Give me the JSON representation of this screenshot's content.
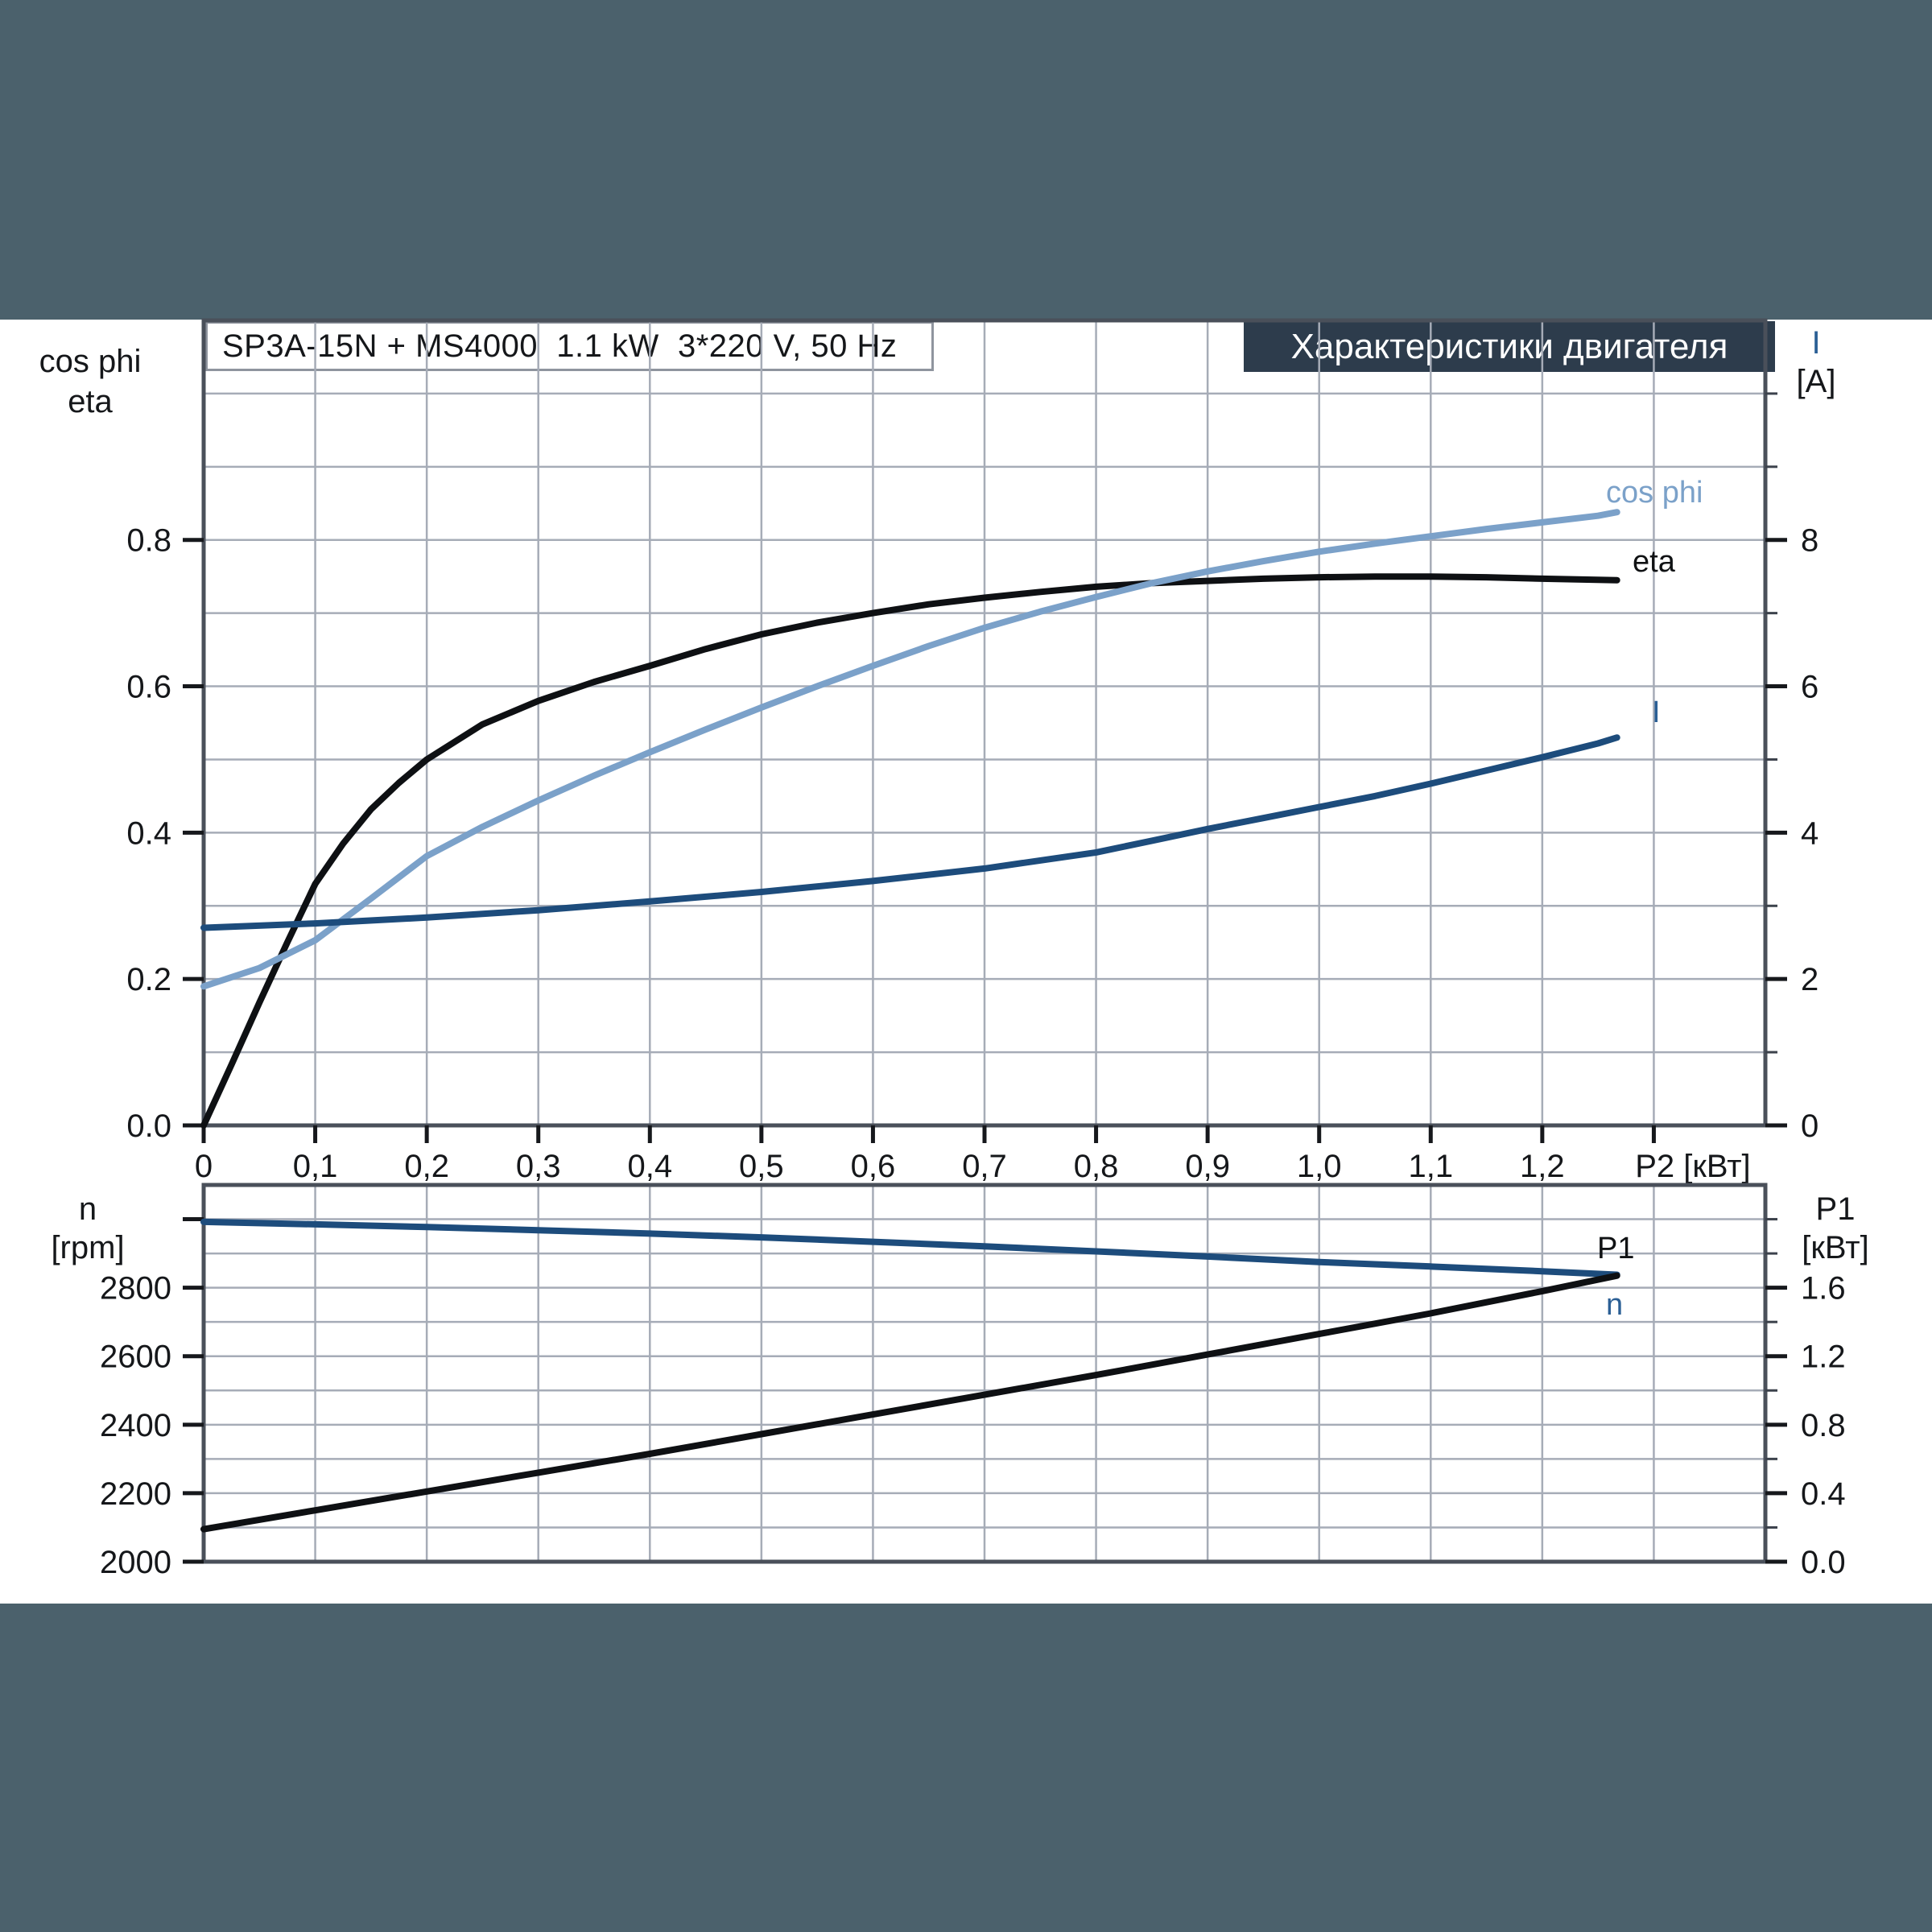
{
  "panel_header": "Характеристики двигателя",
  "colors": {
    "page_background": "#4b616c",
    "header_background": "#2d3c4c",
    "header_text": "#ffffff",
    "cos_phi_curve": "#7ba1c9",
    "eta_curve": "#0e1013",
    "current_curve": "#1d4c7c",
    "speed_curve": "#1d4c7c",
    "p1_curve": "#0e1013",
    "gridline": "#a6acb7"
  },
  "chart_data": [
    {
      "type": "line",
      "title": "SP3A-15N + MS4000  1.1 kW  3*220 V, 50 Hz",
      "panel_title": "Характеристики двигателя",
      "xlabel": "P2 [кВт]",
      "xlabel_at": 1.335,
      "ylabel_left": [
        "cos phi",
        "eta"
      ],
      "ylabel_right": [
        "I",
        "[A]"
      ],
      "xlim": [
        0,
        1.4
      ],
      "ylim_left": [
        0,
        1.1
      ],
      "ylim_right": [
        0,
        11
      ],
      "grid": true,
      "x_gridstep": 0.1,
      "y_gridstep_left": 0.1,
      "x_tickvals": [
        0,
        0.1,
        0.2,
        0.3,
        0.4,
        0.5,
        0.6,
        0.7,
        0.8,
        0.9,
        1.0,
        1.1,
        1.2,
        1.3
      ],
      "x_ticklabels": [
        "0",
        "0,1",
        "0,2",
        "0,3",
        "0,4",
        "0,5",
        "0,6",
        "0,7",
        "0,8",
        "0,9",
        "1,0",
        "1,1",
        "1,2"
      ],
      "yleft_tickvals": [
        0.8,
        0.6,
        0.4,
        0.2,
        0
      ],
      "yleft_ticklabels": [
        "0.8",
        "0.6",
        "0.4",
        "0.2",
        "0.0"
      ],
      "yright_tickvals": [
        8,
        6,
        4,
        2,
        0
      ],
      "yright_ticklabels": [
        "8",
        "6",
        "4",
        "2",
        "0"
      ],
      "yright_minorvals": [
        10,
        9,
        7,
        5,
        3,
        1
      ],
      "series": [
        {
          "name": "eta",
          "label": "eta",
          "axis": "left",
          "color": "#0e1013",
          "points": [
            [
              0,
              0
            ],
            [
              0.025,
              0.083
            ],
            [
              0.05,
              0.168
            ],
            [
              0.075,
              0.25
            ],
            [
              0.1,
              0.33
            ],
            [
              0.125,
              0.385
            ],
            [
              0.15,
              0.432
            ],
            [
              0.175,
              0.468
            ],
            [
              0.2,
              0.5
            ],
            [
              0.25,
              0.548
            ],
            [
              0.3,
              0.58
            ],
            [
              0.35,
              0.606
            ],
            [
              0.4,
              0.628
            ],
            [
              0.45,
              0.651
            ],
            [
              0.5,
              0.671
            ],
            [
              0.55,
              0.687
            ],
            [
              0.6,
              0.7
            ],
            [
              0.65,
              0.712
            ],
            [
              0.7,
              0.721
            ],
            [
              0.75,
              0.729
            ],
            [
              0.8,
              0.736
            ],
            [
              0.85,
              0.741
            ],
            [
              0.9,
              0.744
            ],
            [
              0.95,
              0.747
            ],
            [
              1.0,
              0.749
            ],
            [
              1.05,
              0.75
            ],
            [
              1.1,
              0.75
            ],
            [
              1.15,
              0.749
            ],
            [
              1.2,
              0.747
            ],
            [
              1.267,
              0.745
            ]
          ]
        },
        {
          "name": "cos phi",
          "label": "cos phi",
          "axis": "left",
          "color": "#7ba1c9",
          "points": [
            [
              0,
              0.19
            ],
            [
              0.05,
              0.215
            ],
            [
              0.1,
              0.253
            ],
            [
              0.15,
              0.31
            ],
            [
              0.2,
              0.368
            ],
            [
              0.25,
              0.408
            ],
            [
              0.3,
              0.444
            ],
            [
              0.35,
              0.478
            ],
            [
              0.4,
              0.51
            ],
            [
              0.45,
              0.541
            ],
            [
              0.5,
              0.571
            ],
            [
              0.55,
              0.6
            ],
            [
              0.6,
              0.628
            ],
            [
              0.65,
              0.655
            ],
            [
              0.7,
              0.68
            ],
            [
              0.75,
              0.702
            ],
            [
              0.8,
              0.722
            ],
            [
              0.85,
              0.741
            ],
            [
              0.9,
              0.757
            ],
            [
              0.95,
              0.771
            ],
            [
              1.0,
              0.784
            ],
            [
              1.05,
              0.795
            ],
            [
              1.1,
              0.805
            ],
            [
              1.15,
              0.815
            ],
            [
              1.2,
              0.824
            ],
            [
              1.25,
              0.833
            ],
            [
              1.267,
              0.838
            ]
          ]
        },
        {
          "name": "I",
          "label": "I",
          "axis": "right",
          "color": "#1d4c7c",
          "points": [
            [
              0,
              2.7
            ],
            [
              0.1,
              2.76
            ],
            [
              0.2,
              2.84
            ],
            [
              0.3,
              2.94
            ],
            [
              0.4,
              3.06
            ],
            [
              0.5,
              3.19
            ],
            [
              0.6,
              3.34
            ],
            [
              0.7,
              3.51
            ],
            [
              0.8,
              3.73
            ],
            [
              0.85,
              3.89
            ],
            [
              0.9,
              4.05
            ],
            [
              0.95,
              4.2
            ],
            [
              1.0,
              4.35
            ],
            [
              1.05,
              4.5
            ],
            [
              1.1,
              4.67
            ],
            [
              1.15,
              4.85
            ],
            [
              1.2,
              5.03
            ],
            [
              1.25,
              5.22
            ],
            [
              1.267,
              5.3
            ]
          ]
        }
      ]
    },
    {
      "type": "line",
      "title": "",
      "xlabel": "",
      "ylabel_left": [
        "n",
        "[rpm]"
      ],
      "ylabel_right": [
        "P1",
        "[кВт]"
      ],
      "xlim": [
        0,
        1.4
      ],
      "ylim_left": [
        2000,
        3100
      ],
      "ylim_right": [
        0,
        2.2
      ],
      "grid": true,
      "x_gridstep": 0.1,
      "y_gridstep_left": 100,
      "x_tickvals": [],
      "x_ticklabels": [],
      "yleft_tickvals": [
        3000,
        2800,
        2600,
        2400,
        2200,
        2000
      ],
      "yleft_ticklabels": [
        "",
        "2800",
        "2600",
        "2400",
        "2200",
        "2000"
      ],
      "yright_tickvals": [
        1.6,
        1.2,
        0.8,
        0.4,
        0
      ],
      "yright_ticklabels": [
        "1.6",
        "1.2",
        "0.8",
        "0.4",
        "0.0"
      ],
      "yright_minorvals": [
        2.0,
        1.8,
        1.4,
        1.0,
        0.6,
        0.2
      ],
      "series": [
        {
          "name": "n",
          "label": "n",
          "axis": "left",
          "color": "#1d4c7c",
          "points": [
            [
              0,
              2992
            ],
            [
              0.1,
              2985
            ],
            [
              0.2,
              2977
            ],
            [
              0.3,
              2968
            ],
            [
              0.4,
              2958
            ],
            [
              0.5,
              2947
            ],
            [
              0.6,
              2934
            ],
            [
              0.7,
              2921
            ],
            [
              0.8,
              2906
            ],
            [
              0.9,
              2891
            ],
            [
              1.0,
              2875
            ],
            [
              1.1,
              2862
            ],
            [
              1.2,
              2848
            ],
            [
              1.267,
              2838
            ]
          ]
        },
        {
          "name": "P1",
          "label": "P1",
          "axis": "right",
          "color": "#0e1013",
          "points": [
            [
              0,
              0.19
            ],
            [
              0.1,
              0.3
            ],
            [
              0.2,
              0.41
            ],
            [
              0.3,
              0.52
            ],
            [
              0.4,
              0.63
            ],
            [
              0.5,
              0.745
            ],
            [
              0.6,
              0.86
            ],
            [
              0.7,
              0.975
            ],
            [
              0.8,
              1.09
            ],
            [
              0.9,
              1.21
            ],
            [
              1.0,
              1.33
            ],
            [
              1.1,
              1.45
            ],
            [
              1.2,
              1.58
            ],
            [
              1.267,
              1.67
            ]
          ]
        }
      ]
    }
  ]
}
